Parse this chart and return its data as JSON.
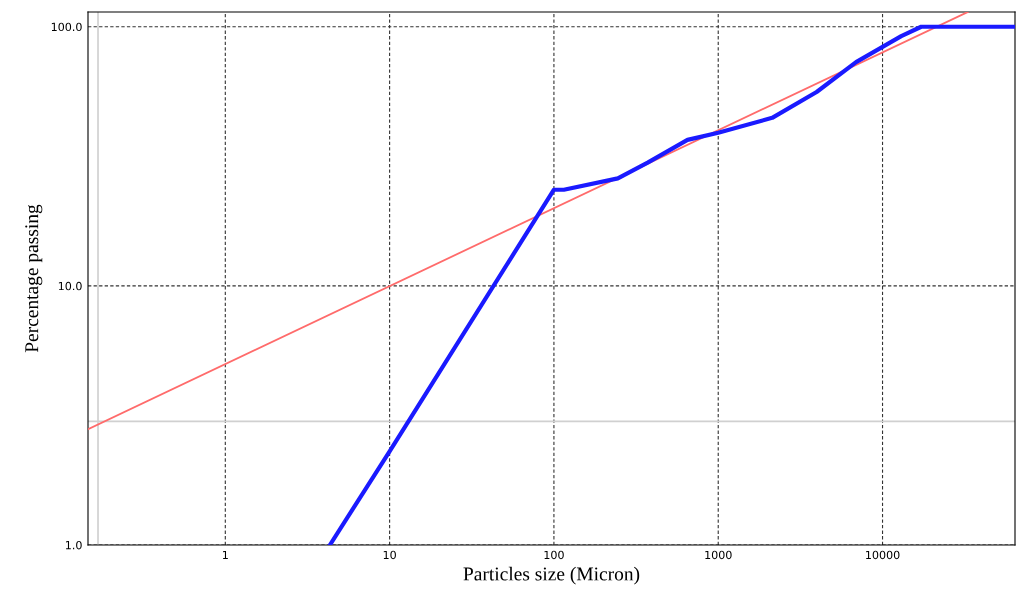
{
  "chart_data": {
    "type": "line",
    "xlabel": "Particles size (Micron)",
    "ylabel": "Percentage passing",
    "log": "xy",
    "grid": true,
    "xlim": [
      0.146,
      64000
    ],
    "ylim": [
      1,
      114
    ],
    "xticks": [
      1,
      10,
      100,
      1000,
      10000
    ],
    "yticks": [
      {
        "value": 1,
        "label": "1.0"
      },
      {
        "value": 10,
        "label": "10.0"
      },
      {
        "value": 100,
        "label": "100.0"
      }
    ],
    "series": [
      {
        "color": "#ff6b6b",
        "x": [
          0.146,
          33000
        ],
        "values": [
          2.8,
          114
        ]
      },
      {
        "color": "#1a1aff",
        "x": [
          4.33,
          10,
          100,
          115,
          245,
          372,
          650,
          1000,
          2130,
          3970,
          6900,
          13000,
          17200,
          64000
        ],
        "values": [
          1.0,
          2.3,
          23.5,
          23.5,
          26,
          29.9,
          36.6,
          39,
          44.5,
          56,
          73,
          92,
          100,
          100
        ]
      }
    ],
    "ref_lines": [
      {
        "axis": "x",
        "value": 0.168,
        "color": "#d0d0d0"
      },
      {
        "axis": "y",
        "value": 3.0,
        "color": "#d0d0d0"
      }
    ]
  }
}
